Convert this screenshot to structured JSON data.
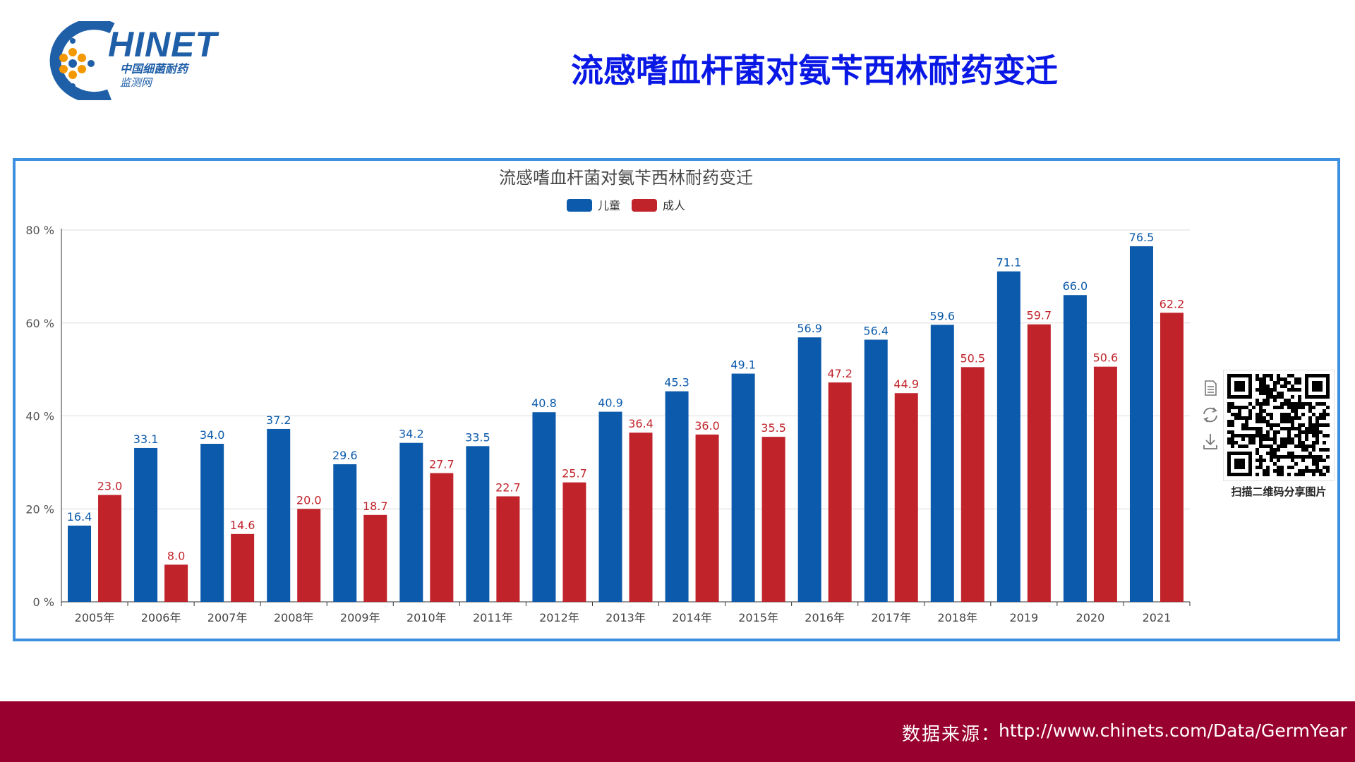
{
  "logo": {
    "brand": "HINET",
    "subtitle_line1": "中国细菌耐药",
    "subtitle_line2": "监测网"
  },
  "page": {
    "title": "流感嗜血杆菌对氨苄西林耐药变迁"
  },
  "toolbox": {
    "icons": [
      "data-view-icon",
      "restore-icon",
      "save-image-icon"
    ]
  },
  "qr": {
    "label": "扫描二维码分享图片"
  },
  "footer": {
    "source_label": "数据来源：",
    "source_url": "http://www.chinets.com/Data/GermYear"
  },
  "colors": {
    "children": "#0b5aab",
    "adults": "#c1232b",
    "frame": "#3d8fe0",
    "footer_bg": "#980030"
  },
  "chart_data": {
    "type": "bar",
    "title": "流感嗜血杆菌对氨苄西林耐药变迁",
    "categories": [
      "2005年",
      "2006年",
      "2007年",
      "2008年",
      "2009年",
      "2010年",
      "2011年",
      "2012年",
      "2013年",
      "2014年",
      "2015年",
      "2016年",
      "2017年",
      "2018年",
      "2019",
      "2020",
      "2021"
    ],
    "series": [
      {
        "name": "儿童",
        "color": "#0b5aab",
        "values": [
          16.4,
          33.1,
          34.0,
          37.2,
          29.6,
          34.2,
          33.5,
          40.8,
          40.9,
          45.3,
          49.1,
          56.9,
          56.4,
          59.6,
          71.1,
          66.0,
          76.5
        ]
      },
      {
        "name": "成人",
        "color": "#c1232b",
        "values": [
          23.0,
          8.0,
          14.6,
          20.0,
          18.7,
          27.7,
          22.7,
          25.7,
          36.4,
          36.0,
          35.5,
          47.2,
          44.9,
          50.5,
          59.7,
          50.6,
          62.2
        ]
      }
    ],
    "y_ticks": [
      0,
      20,
      40,
      60,
      80
    ],
    "y_tick_suffix": " %",
    "ylim": [
      0,
      80
    ],
    "xlabel": "",
    "ylabel": "",
    "legend": "top-center",
    "grid": true
  }
}
